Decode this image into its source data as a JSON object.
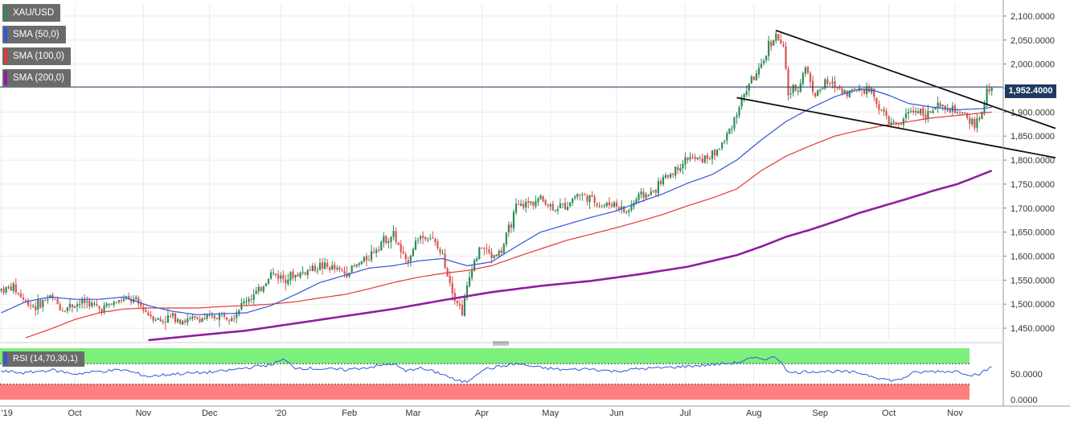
{
  "legend": {
    "symbol": "XAU/USD",
    "sma50": "SMA (50,0)",
    "sma100": "SMA (100,0)",
    "sma200": "SMA (200,0)",
    "rsi": "RSI (14,70,30,1)"
  },
  "current_price_label": "1,952.4000",
  "colors": {
    "up": "#2e8b57",
    "down": "#d9534f",
    "sma50": "#3355dd",
    "sma100": "#e53935",
    "sma200": "#8e1f9e",
    "rsi_line": "#3355dd",
    "rsi_overbought": "#7cf07c",
    "rsi_oversold": "#ff7f7f",
    "trendline": "#111111",
    "price_line": "#1e3a5f"
  },
  "chart_data": {
    "type": "candlestick",
    "symbol": "XAU/USD",
    "x_tick_labels": [
      "'19",
      "Oct",
      "Nov",
      "Dec",
      "'20",
      "Feb",
      "Mar",
      "Apr",
      "May",
      "Jun",
      "Jul",
      "Aug",
      "Sep",
      "Oct",
      "Nov"
    ],
    "y_tick_labels": [
      "2,100.0000",
      "2,050.0000",
      "2,000.0000",
      "1,950.0000",
      "1,900.0000",
      "1,850.0000",
      "1,800.0000",
      "1,750.0000",
      "1,700.0000",
      "1,650.0000",
      "1,600.0000",
      "1,550.0000",
      "1,500.0000",
      "1,450.0000"
    ],
    "y_ticks": [
      2100,
      2050,
      2000,
      1950,
      1900,
      1850,
      1800,
      1750,
      1700,
      1650,
      1600,
      1550,
      1500,
      1450
    ],
    "ylim": [
      1425,
      2125
    ],
    "current_price": 1952.4,
    "price_anchors": [
      [
        0,
        1530
      ],
      [
        5,
        1535
      ],
      [
        10,
        1505
      ],
      [
        14,
        1495
      ],
      [
        20,
        1515
      ],
      [
        25,
        1490
      ],
      [
        30,
        1500
      ],
      [
        35,
        1505
      ],
      [
        40,
        1490
      ],
      [
        45,
        1500
      ],
      [
        50,
        1510
      ],
      [
        55,
        1505
      ],
      [
        60,
        1480
      ],
      [
        65,
        1465
      ],
      [
        70,
        1475
      ],
      [
        75,
        1465
      ],
      [
        80,
        1470
      ],
      [
        85,
        1470
      ],
      [
        90,
        1478
      ],
      [
        95,
        1478
      ],
      [
        100,
        1510
      ],
      [
        105,
        1525
      ],
      [
        110,
        1565
      ],
      [
        115,
        1555
      ],
      [
        120,
        1560
      ],
      [
        125,
        1570
      ],
      [
        130,
        1580
      ],
      [
        135,
        1575
      ],
      [
        140,
        1565
      ],
      [
        145,
        1580
      ],
      [
        150,
        1600
      ],
      [
        155,
        1630
      ],
      [
        160,
        1645
      ],
      [
        165,
        1585
      ],
      [
        170,
        1640
      ],
      [
        175,
        1640
      ],
      [
        180,
        1600
      ],
      [
        185,
        1515
      ],
      [
        188,
        1485
      ],
      [
        192,
        1580
      ],
      [
        196,
        1620
      ],
      [
        200,
        1600
      ],
      [
        204,
        1610
      ],
      [
        210,
        1700
      ],
      [
        215,
        1710
      ],
      [
        220,
        1720
      ],
      [
        225,
        1700
      ],
      [
        230,
        1705
      ],
      [
        235,
        1730
      ],
      [
        240,
        1720
      ],
      [
        245,
        1705
      ],
      [
        250,
        1710
      ],
      [
        255,
        1690
      ],
      [
        260,
        1725
      ],
      [
        265,
        1730
      ],
      [
        270,
        1760
      ],
      [
        275,
        1780
      ],
      [
        280,
        1805
      ],
      [
        285,
        1800
      ],
      [
        290,
        1810
      ],
      [
        295,
        1840
      ],
      [
        300,
        1900
      ],
      [
        305,
        1960
      ],
      [
        310,
        1990
      ],
      [
        313,
        2040
      ],
      [
        316,
        2060
      ],
      [
        319,
        2030
      ],
      [
        321,
        1940
      ],
      [
        325,
        1950
      ],
      [
        328,
        1995
      ],
      [
        332,
        1935
      ],
      [
        336,
        1960
      ],
      [
        340,
        1955
      ],
      [
        345,
        1940
      ],
      [
        350,
        1950
      ],
      [
        355,
        1945
      ],
      [
        358,
        1910
      ],
      [
        362,
        1880
      ],
      [
        366,
        1870
      ],
      [
        370,
        1900
      ],
      [
        374,
        1905
      ],
      [
        378,
        1895
      ],
      [
        382,
        1910
      ],
      [
        386,
        1905
      ],
      [
        390,
        1900
      ],
      [
        394,
        1885
      ],
      [
        397,
        1875
      ],
      [
        400,
        1895
      ],
      [
        402,
        1940
      ],
      [
        404,
        1952.4
      ]
    ],
    "sma50_anchors": [
      [
        0,
        1482
      ],
      [
        10,
        1505
      ],
      [
        20,
        1515
      ],
      [
        30,
        1510
      ],
      [
        40,
        1510
      ],
      [
        50,
        1515
      ],
      [
        60,
        1497
      ],
      [
        70,
        1485
      ],
      [
        80,
        1478
      ],
      [
        90,
        1480
      ],
      [
        100,
        1482
      ],
      [
        110,
        1497
      ],
      [
        120,
        1520
      ],
      [
        130,
        1545
      ],
      [
        140,
        1560
      ],
      [
        150,
        1575
      ],
      [
        160,
        1580
      ],
      [
        170,
        1590
      ],
      [
        180,
        1595
      ],
      [
        190,
        1580
      ],
      [
        200,
        1588
      ],
      [
        210,
        1620
      ],
      [
        220,
        1650
      ],
      [
        230,
        1665
      ],
      [
        240,
        1680
      ],
      [
        250,
        1693
      ],
      [
        260,
        1712
      ],
      [
        270,
        1730
      ],
      [
        280,
        1752
      ],
      [
        290,
        1770
      ],
      [
        300,
        1800
      ],
      [
        310,
        1842
      ],
      [
        320,
        1880
      ],
      [
        330,
        1908
      ],
      [
        340,
        1932
      ],
      [
        350,
        1948
      ],
      [
        356,
        1945
      ],
      [
        362,
        1935
      ],
      [
        370,
        1918
      ],
      [
        380,
        1910
      ],
      [
        390,
        1905
      ],
      [
        400,
        1907
      ],
      [
        404,
        1910
      ]
    ],
    "sma100_anchors": [
      [
        10,
        1430
      ],
      [
        20,
        1448
      ],
      [
        30,
        1468
      ],
      [
        40,
        1482
      ],
      [
        50,
        1490
      ],
      [
        60,
        1492
      ],
      [
        70,
        1492
      ],
      [
        80,
        1492
      ],
      [
        90,
        1495
      ],
      [
        100,
        1497
      ],
      [
        110,
        1500
      ],
      [
        120,
        1505
      ],
      [
        130,
        1513
      ],
      [
        140,
        1520
      ],
      [
        150,
        1532
      ],
      [
        160,
        1545
      ],
      [
        170,
        1556
      ],
      [
        180,
        1564
      ],
      [
        190,
        1570
      ],
      [
        200,
        1580
      ],
      [
        210,
        1598
      ],
      [
        220,
        1615
      ],
      [
        230,
        1632
      ],
      [
        240,
        1645
      ],
      [
        250,
        1658
      ],
      [
        260,
        1672
      ],
      [
        270,
        1687
      ],
      [
        280,
        1705
      ],
      [
        290,
        1721
      ],
      [
        300,
        1740
      ],
      [
        310,
        1778
      ],
      [
        320,
        1808
      ],
      [
        330,
        1830
      ],
      [
        340,
        1850
      ],
      [
        350,
        1862
      ],
      [
        360,
        1872
      ],
      [
        370,
        1880
      ],
      [
        380,
        1888
      ],
      [
        390,
        1893
      ],
      [
        400,
        1898
      ],
      [
        404,
        1900
      ]
    ],
    "sma200_anchors": [
      [
        60,
        1425
      ],
      [
        80,
        1435
      ],
      [
        100,
        1445
      ],
      [
        120,
        1460
      ],
      [
        140,
        1475
      ],
      [
        160,
        1490
      ],
      [
        180,
        1508
      ],
      [
        200,
        1525
      ],
      [
        220,
        1538
      ],
      [
        240,
        1548
      ],
      [
        260,
        1562
      ],
      [
        280,
        1578
      ],
      [
        300,
        1602
      ],
      [
        310,
        1620
      ],
      [
        320,
        1640
      ],
      [
        330,
        1655
      ],
      [
        340,
        1672
      ],
      [
        350,
        1690
      ],
      [
        360,
        1705
      ],
      [
        370,
        1720
      ],
      [
        380,
        1736
      ],
      [
        390,
        1750
      ],
      [
        400,
        1770
      ],
      [
        404,
        1778
      ]
    ],
    "trendlines": [
      {
        "x0": 316,
        "y0": 2070,
        "x1": 430,
        "y1": 1866
      },
      {
        "x0": 300,
        "y0": 1930,
        "x1": 430,
        "y1": 1805
      }
    ],
    "rsi": {
      "label": "RSI (14,70,30,1)",
      "ylim": [
        0,
        100
      ],
      "overbought": 70,
      "oversold": 30,
      "y_tick_labels": [
        "50.0000",
        "0.0000"
      ],
      "y_ticks": [
        50,
        0
      ],
      "anchors": [
        [
          0,
          55
        ],
        [
          10,
          52
        ],
        [
          20,
          58
        ],
        [
          30,
          50
        ],
        [
          40,
          55
        ],
        [
          50,
          58
        ],
        [
          60,
          45
        ],
        [
          70,
          50
        ],
        [
          80,
          52
        ],
        [
          90,
          55
        ],
        [
          100,
          62
        ],
        [
          110,
          68
        ],
        [
          115,
          78
        ],
        [
          120,
          62
        ],
        [
          130,
          60
        ],
        [
          140,
          58
        ],
        [
          150,
          63
        ],
        [
          160,
          70
        ],
        [
          165,
          55
        ],
        [
          170,
          62
        ],
        [
          180,
          50
        ],
        [
          186,
          36
        ],
        [
          190,
          35
        ],
        [
          196,
          58
        ],
        [
          210,
          70
        ],
        [
          220,
          62
        ],
        [
          230,
          58
        ],
        [
          240,
          60
        ],
        [
          250,
          55
        ],
        [
          260,
          60
        ],
        [
          270,
          62
        ],
        [
          280,
          65
        ],
        [
          290,
          68
        ],
        [
          300,
          72
        ],
        [
          306,
          80
        ],
        [
          312,
          80
        ],
        [
          316,
          82
        ],
        [
          319,
          70
        ],
        [
          321,
          52
        ],
        [
          330,
          55
        ],
        [
          340,
          55
        ],
        [
          350,
          52
        ],
        [
          356,
          45
        ],
        [
          362,
          38
        ],
        [
          366,
          38
        ],
        [
          372,
          52
        ],
        [
          380,
          55
        ],
        [
          390,
          55
        ],
        [
          396,
          48
        ],
        [
          400,
          52
        ],
        [
          404,
          64
        ]
      ]
    }
  }
}
